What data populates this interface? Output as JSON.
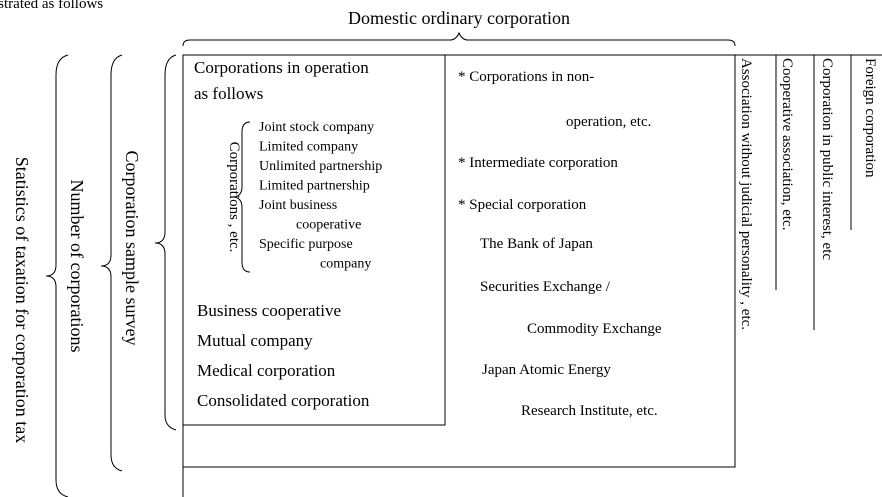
{
  "caption": "istrated as follows",
  "top_label": "Domestic ordinary corporation",
  "left_labels": [
    "Statistics of taxation for corporation tax",
    "Number of corporations",
    "Corporation sample survey"
  ],
  "operation_box": {
    "title": [
      "Corporations in operation",
      "as follows"
    ],
    "group_label": "Corporations , etc.",
    "group_items": [
      "Joint stock company",
      "Limited company",
      "Unlimited partnership",
      "Limited partnership",
      "Joint business",
      "cooperative",
      "Specific purpose",
      "company"
    ],
    "items": [
      "Business cooperative",
      "Mutual company",
      "Medical corporation",
      "Consolidated corporation"
    ]
  },
  "other_box": [
    "* Corporations in non-",
    "operation, etc.",
    "* Intermediate corporation",
    "* Special corporation",
    "The Bank of Japan",
    "Securities Exchange /",
    "Commodity Exchange",
    "Japan Atomic Energy",
    "Research Institute, etc."
  ],
  "columns": [
    "Association without judicial personality , etc.",
    "Cooperative association, etc.",
    "Corporation in public interest, etc",
    "Foreign corporation"
  ]
}
